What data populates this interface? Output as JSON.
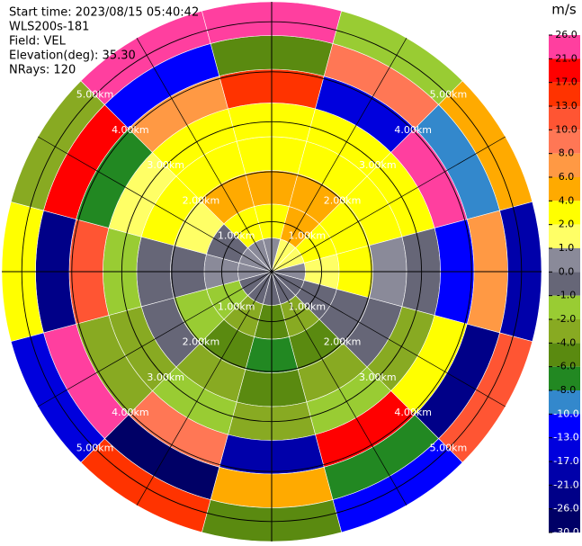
{
  "chart_data": {
    "type": "ppi",
    "info": [
      "Start time: 2023/08/15 05:40:42",
      "WLS200s-181",
      "Field: VEL",
      "Elevation(deg): 35.30",
      "NRays: 120"
    ],
    "unit": "m/s",
    "azimuths": [
      0,
      30,
      60,
      90,
      120,
      150,
      180,
      210,
      240,
      270,
      300,
      330
    ],
    "range_gates": [
      0,
      0.675,
      1.35,
      2.025,
      2.7,
      3.375,
      4.05,
      4.725,
      5.4
    ],
    "rlim": [
      0,
      5.4
    ],
    "rings": [
      {
        "value": 1,
        "label": "1.00km"
      },
      {
        "value": 2,
        "label": "2.00km"
      },
      {
        "value": 3,
        "label": "3.00km"
      },
      {
        "value": 4,
        "label": "4.00km"
      },
      {
        "value": 5,
        "label": "5.00km"
      }
    ],
    "values": [
      [
        0.5,
        3,
        5,
        3,
        2,
        13,
        -6,
        21
      ],
      [
        1,
        4,
        5,
        3,
        2,
        -17,
        8,
        -2
      ],
      [
        1,
        2,
        3,
        2,
        2,
        26,
        -10,
        4
      ],
      [
        0,
        1.5,
        2,
        0.5,
        -0.5,
        -13,
        6,
        -21
      ],
      [
        -1,
        -0.5,
        -0.5,
        -1,
        -3,
        2,
        -26,
        10
      ],
      [
        -1,
        -3,
        -5,
        -3,
        -2,
        17,
        -8,
        -13
      ],
      [
        -1,
        -5,
        -7,
        -5,
        -3,
        -21,
        4,
        -6
      ],
      [
        -1,
        -3,
        -5,
        -3,
        -2,
        8,
        -30,
        13
      ],
      [
        -0.5,
        -1.5,
        -1.5,
        -1,
        -3,
        -4,
        21,
        -17
      ],
      [
        0,
        0.5,
        -0.5,
        -0.5,
        -2,
        10,
        -26,
        2
      ],
      [
        0.5,
        -0.5,
        1.5,
        2,
        1.5,
        -8,
        17,
        -4
      ],
      [
        0.5,
        2,
        4,
        3,
        2,
        6,
        -13,
        26
      ]
    ],
    "colorbar": {
      "ticks": [
        {
          "value": 26,
          "label": "26.0"
        },
        {
          "value": 21,
          "label": "21.0"
        },
        {
          "value": 17,
          "label": "17.0"
        },
        {
          "value": 13,
          "label": "13.0"
        },
        {
          "value": 10,
          "label": "10.0"
        },
        {
          "value": 8,
          "label": "8.0"
        },
        {
          "value": 6,
          "label": "6.0"
        },
        {
          "value": 4,
          "label": "4.0"
        },
        {
          "value": 2,
          "label": "2.0"
        },
        {
          "value": 1,
          "label": "1.0"
        },
        {
          "value": 0,
          "label": "0.0"
        },
        {
          "value": -1,
          "label": "-1.0"
        },
        {
          "value": -2,
          "label": "-2.0"
        },
        {
          "value": -4,
          "label": "-4.0"
        },
        {
          "value": -6,
          "label": "-6.0"
        },
        {
          "value": -8,
          "label": "-8.0"
        },
        {
          "value": -10,
          "label": "-10.0"
        },
        {
          "value": -13,
          "label": "-13.0"
        },
        {
          "value": -17,
          "label": "-17.0"
        },
        {
          "value": -21,
          "label": "-21.0"
        },
        {
          "value": -26,
          "label": "-26.0"
        },
        {
          "value": -30,
          "label": "-30.0"
        }
      ],
      "colors": [
        "#ff3f9f",
        "#ff0000",
        "#ff3300",
        "#ff5533",
        "#ff7755",
        "#ff9944",
        "#ffaa00",
        "#ffff00",
        "#ffff66",
        "#8a8a99",
        "#666677",
        "#99cc33",
        "#88aa22",
        "#5a8a10",
        "#228822",
        "#3388cc",
        "#0000ff",
        "#0000dd",
        "#0000aa",
        "#000088",
        "#000066"
      ]
    }
  }
}
